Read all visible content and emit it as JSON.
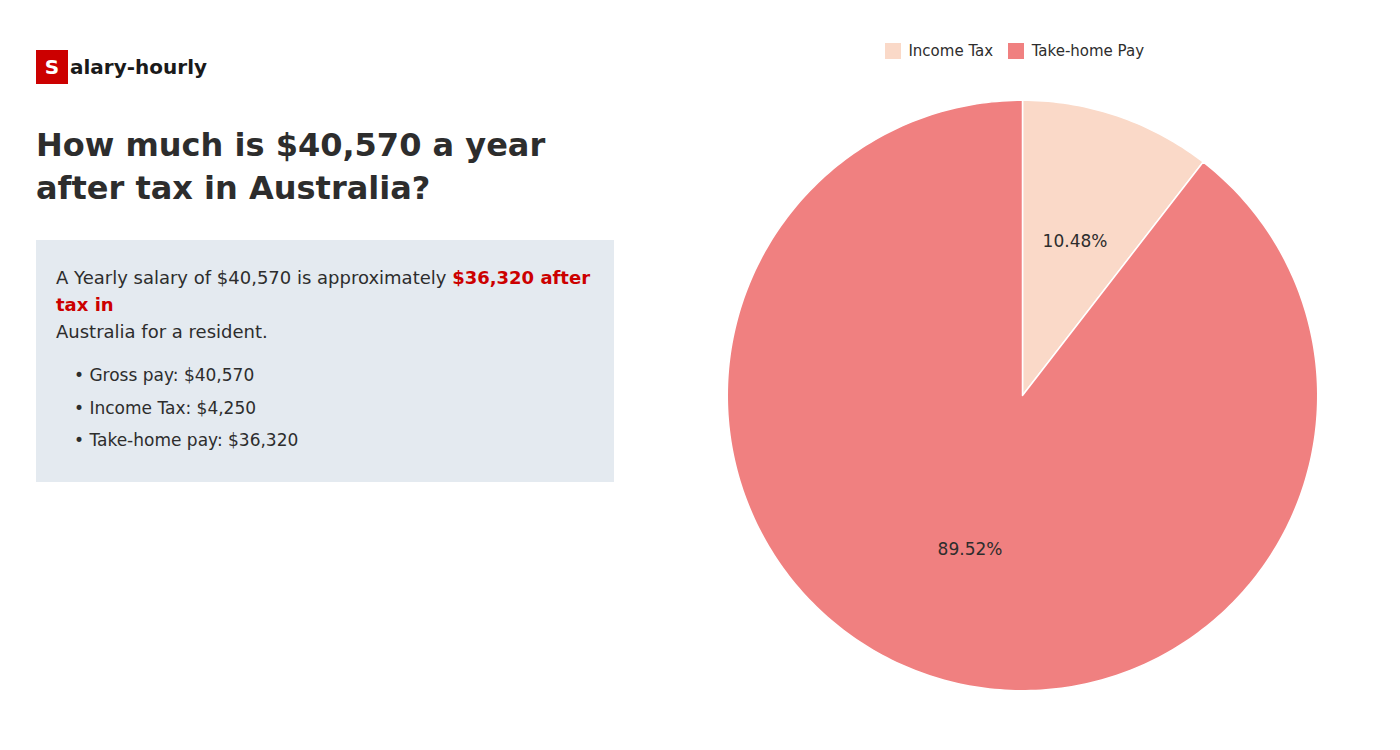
{
  "chart_data": {
    "type": "pie",
    "title": "How much is $40,570 a year after tax in Australia?",
    "annotations": [
      {
        "text": "Salary-hourly",
        "color": "#cc0000"
      },
      {
        "text": "A Yearly salary of $40,570 is approximately "
      },
      {
        "text": "$36,320 after tax in",
        "color": "#cc0000"
      },
      {
        "text": "Australia for a resident."
      },
      {
        "text": "• Gross pay: $40,570"
      },
      {
        "text": "• Income Tax: $4,250"
      },
      {
        "text": "• Take-home pay: $36,320"
      }
    ],
    "categories": [
      "Income Tax",
      "Take-home Pay"
    ],
    "values": [
      10.48,
      89.52
    ],
    "value_labels": [
      "10.48%",
      "89.52%"
    ],
    "colors": [
      "#fad9c8",
      "#f08080"
    ],
    "data_labels": true,
    "legend": "top"
  }
}
